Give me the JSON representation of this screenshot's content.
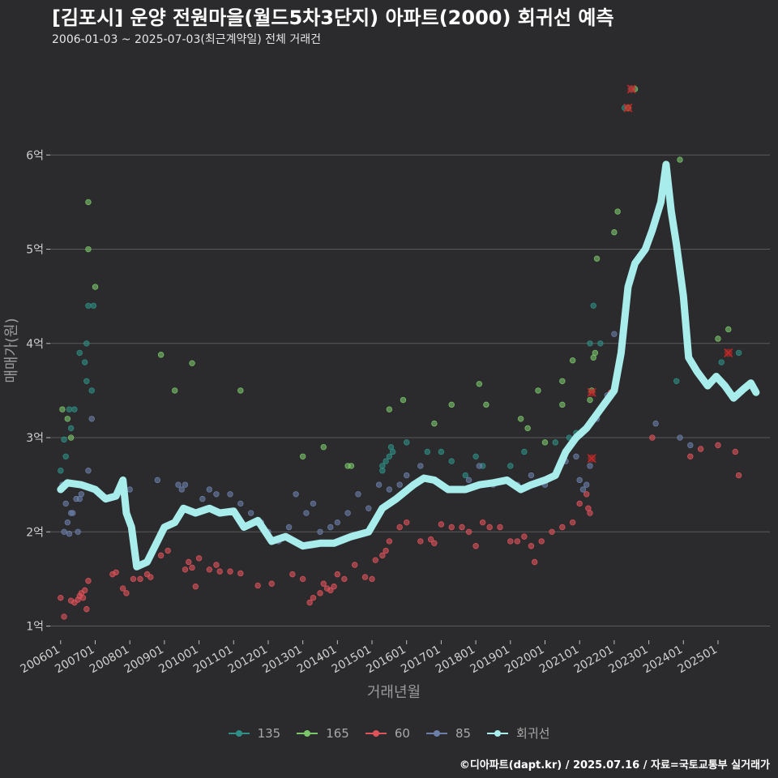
{
  "title": "[김포시] 운양 전원마을(월드5차3단지) 아파트(2000) 회귀선 예측",
  "subtitle": "2006-01-03 ~ 2025-07-03(최근계약일) 전체 거래건",
  "footer": "©디아파트(dapt.kr) / 2025.07.16 / 자료=국토교통부 실거래가",
  "colors": {
    "background": "#2b2b2d",
    "grid": "#5a5a5a",
    "s135": "#2f8f86",
    "s165": "#7cc66a",
    "s60": "#e0525a",
    "s85": "#6b7fa8",
    "regression": "#a8ecec",
    "outlier_marker": "#c62828"
  },
  "legend": [
    {
      "key": "s135",
      "label": "135"
    },
    {
      "key": "s165",
      "label": "165"
    },
    {
      "key": "s60",
      "label": "60"
    },
    {
      "key": "s85",
      "label": "85"
    },
    {
      "key": "regression",
      "label": "회귀선"
    }
  ],
  "chart_data": {
    "type": "scatter",
    "xlabel": "거래년월",
    "ylabel": "매매가(원)",
    "x_ticks": [
      "200601",
      "200701",
      "200801",
      "200901",
      "201001",
      "201101",
      "201201",
      "201301",
      "201401",
      "201501",
      "201601",
      "201701",
      "201801",
      "201901",
      "202001",
      "202101",
      "202201",
      "202301",
      "202401",
      "202501"
    ],
    "xlim": [
      2005.7,
      2026.5
    ],
    "ylim": [
      0.85,
      7.0
    ],
    "y_ticks": [
      {
        "value": 1,
        "label": "1억"
      },
      {
        "value": 2,
        "label": "2억"
      },
      {
        "value": 3,
        "label": "3억"
      },
      {
        "value": 4,
        "label": "4억"
      },
      {
        "value": 5,
        "label": "5억"
      },
      {
        "value": 6,
        "label": "6억"
      }
    ],
    "grid": true,
    "legend_position": "bottom",
    "series": [
      {
        "name": "135",
        "color_key": "s135",
        "points": [
          [
            2006.0,
            2.65
          ],
          [
            2006.1,
            2.98
          ],
          [
            2006.15,
            2.8
          ],
          [
            2006.3,
            3.1
          ],
          [
            2006.25,
            3.3
          ],
          [
            2006.4,
            3.3
          ],
          [
            2006.55,
            3.9
          ],
          [
            2006.7,
            3.8
          ],
          [
            2006.75,
            4.0
          ],
          [
            2006.8,
            4.4
          ],
          [
            2006.75,
            3.6
          ],
          [
            2006.9,
            3.5
          ],
          [
            2006.95,
            4.4
          ],
          [
            2015.3,
            2.7
          ],
          [
            2015.4,
            2.75
          ],
          [
            2015.5,
            2.8
          ],
          [
            2015.55,
            2.9
          ],
          [
            2015.6,
            2.85
          ],
          [
            2015.3,
            2.65
          ],
          [
            2016.0,
            2.95
          ],
          [
            2016.6,
            2.85
          ],
          [
            2017.0,
            2.85
          ],
          [
            2017.3,
            2.75
          ],
          [
            2017.7,
            2.6
          ],
          [
            2018.0,
            2.8
          ],
          [
            2018.2,
            2.7
          ],
          [
            2019.0,
            2.7
          ],
          [
            2019.4,
            2.85
          ],
          [
            2020.3,
            2.95
          ],
          [
            2020.7,
            3.0
          ],
          [
            2020.9,
            3.05
          ],
          [
            2021.3,
            4.0
          ],
          [
            2021.4,
            4.4
          ],
          [
            2021.6,
            4.0
          ],
          [
            2022.3,
            6.5
          ],
          [
            2022.5,
            6.7
          ],
          [
            2023.8,
            3.6
          ],
          [
            2025.1,
            3.8
          ],
          [
            2025.6,
            3.9
          ]
        ]
      },
      {
        "name": "165",
        "color_key": "s165",
        "points": [
          [
            2006.05,
            3.3
          ],
          [
            2006.2,
            3.2
          ],
          [
            2006.3,
            3.0
          ],
          [
            2006.8,
            5.5
          ],
          [
            2006.8,
            5.0
          ],
          [
            2007.0,
            4.6
          ],
          [
            2008.9,
            3.88
          ],
          [
            2009.3,
            3.5
          ],
          [
            2009.8,
            3.79
          ],
          [
            2011.2,
            3.5
          ],
          [
            2013.0,
            2.8
          ],
          [
            2013.6,
            2.9
          ],
          [
            2014.3,
            2.7
          ],
          [
            2014.4,
            2.7
          ],
          [
            2015.5,
            3.3
          ],
          [
            2015.9,
            3.4
          ],
          [
            2016.8,
            3.15
          ],
          [
            2017.3,
            3.35
          ],
          [
            2018.1,
            3.57
          ],
          [
            2018.3,
            3.35
          ],
          [
            2019.3,
            3.2
          ],
          [
            2019.5,
            3.1
          ],
          [
            2019.8,
            3.5
          ],
          [
            2020.0,
            2.95
          ],
          [
            2020.5,
            3.6
          ],
          [
            2020.5,
            3.35
          ],
          [
            2020.8,
            3.82
          ],
          [
            2021.3,
            3.4
          ],
          [
            2021.35,
            3.5
          ],
          [
            2021.4,
            3.85
          ],
          [
            2021.45,
            3.9
          ],
          [
            2021.5,
            4.9
          ],
          [
            2022.0,
            5.18
          ],
          [
            2022.1,
            5.4
          ],
          [
            2022.4,
            6.5
          ],
          [
            2022.6,
            6.7
          ],
          [
            2023.9,
            5.95
          ],
          [
            2025.0,
            4.05
          ],
          [
            2025.3,
            4.15
          ]
        ]
      },
      {
        "name": "60",
        "color_key": "s60",
        "points": [
          [
            2006.0,
            1.3
          ],
          [
            2006.1,
            1.1
          ],
          [
            2006.3,
            1.27
          ],
          [
            2006.4,
            1.25
          ],
          [
            2006.5,
            1.28
          ],
          [
            2006.55,
            1.32
          ],
          [
            2006.6,
            1.35
          ],
          [
            2006.65,
            1.3
          ],
          [
            2006.7,
            1.38
          ],
          [
            2006.75,
            1.18
          ],
          [
            2006.8,
            1.48
          ],
          [
            2007.5,
            1.55
          ],
          [
            2007.6,
            1.57
          ],
          [
            2007.8,
            1.4
          ],
          [
            2007.9,
            1.35
          ],
          [
            2008.1,
            1.5
          ],
          [
            2008.3,
            1.5
          ],
          [
            2008.5,
            1.55
          ],
          [
            2008.6,
            1.52
          ],
          [
            2008.9,
            1.75
          ],
          [
            2009.1,
            1.8
          ],
          [
            2009.6,
            1.6
          ],
          [
            2009.7,
            1.68
          ],
          [
            2009.8,
            1.62
          ],
          [
            2009.9,
            1.42
          ],
          [
            2010.0,
            1.72
          ],
          [
            2010.3,
            1.6
          ],
          [
            2010.5,
            1.65
          ],
          [
            2010.6,
            1.58
          ],
          [
            2010.9,
            1.58
          ],
          [
            2011.2,
            1.56
          ],
          [
            2011.7,
            1.43
          ],
          [
            2012.1,
            1.45
          ],
          [
            2012.7,
            1.55
          ],
          [
            2013.0,
            1.5
          ],
          [
            2013.2,
            1.25
          ],
          [
            2013.3,
            1.3
          ],
          [
            2013.5,
            1.35
          ],
          [
            2013.6,
            1.45
          ],
          [
            2013.7,
            1.4
          ],
          [
            2013.8,
            1.38
          ],
          [
            2013.9,
            1.42
          ],
          [
            2014.0,
            1.55
          ],
          [
            2014.2,
            1.5
          ],
          [
            2014.5,
            1.65
          ],
          [
            2014.8,
            1.52
          ],
          [
            2015.0,
            1.5
          ],
          [
            2015.1,
            1.7
          ],
          [
            2015.3,
            1.75
          ],
          [
            2015.4,
            1.8
          ],
          [
            2015.5,
            1.9
          ],
          [
            2015.8,
            2.05
          ],
          [
            2016.0,
            2.1
          ],
          [
            2016.4,
            1.9
          ],
          [
            2016.7,
            1.92
          ],
          [
            2016.8,
            1.88
          ],
          [
            2017.0,
            2.08
          ],
          [
            2017.3,
            2.05
          ],
          [
            2017.6,
            2.05
          ],
          [
            2017.8,
            2.0
          ],
          [
            2018.0,
            1.85
          ],
          [
            2018.2,
            2.1
          ],
          [
            2018.4,
            2.05
          ],
          [
            2018.7,
            2.05
          ],
          [
            2019.0,
            1.9
          ],
          [
            2019.2,
            1.9
          ],
          [
            2019.4,
            1.95
          ],
          [
            2019.6,
            1.85
          ],
          [
            2019.7,
            1.68
          ],
          [
            2019.9,
            1.9
          ],
          [
            2020.2,
            2.0
          ],
          [
            2020.5,
            2.05
          ],
          [
            2020.8,
            2.1
          ],
          [
            2021.0,
            2.3
          ],
          [
            2021.2,
            2.4
          ],
          [
            2021.25,
            2.25
          ],
          [
            2021.3,
            2.2
          ],
          [
            2021.9,
            3.48
          ],
          [
            2023.1,
            3.0
          ],
          [
            2024.2,
            2.8
          ],
          [
            2024.5,
            2.88
          ],
          [
            2025.0,
            2.92
          ],
          [
            2025.5,
            2.85
          ],
          [
            2025.6,
            2.6
          ]
        ]
      },
      {
        "name": "85",
        "color_key": "s85",
        "points": [
          [
            2006.05,
            2.5
          ],
          [
            2006.1,
            2.0
          ],
          [
            2006.15,
            2.3
          ],
          [
            2006.2,
            2.1
          ],
          [
            2006.25,
            1.98
          ],
          [
            2006.3,
            2.2
          ],
          [
            2006.35,
            2.2
          ],
          [
            2006.45,
            2.35
          ],
          [
            2006.5,
            2.0
          ],
          [
            2006.55,
            2.35
          ],
          [
            2006.6,
            2.4
          ],
          [
            2006.8,
            2.65
          ],
          [
            2006.9,
            3.2
          ],
          [
            2008.0,
            2.45
          ],
          [
            2008.8,
            2.55
          ],
          [
            2009.4,
            2.5
          ],
          [
            2009.5,
            2.45
          ],
          [
            2009.6,
            2.5
          ],
          [
            2010.1,
            2.35
          ],
          [
            2010.3,
            2.45
          ],
          [
            2010.5,
            2.4
          ],
          [
            2010.9,
            2.4
          ],
          [
            2011.2,
            2.3
          ],
          [
            2011.5,
            2.2
          ],
          [
            2011.8,
            2.1
          ],
          [
            2012.0,
            2.0
          ],
          [
            2012.3,
            1.9
          ],
          [
            2012.6,
            2.05
          ],
          [
            2012.8,
            2.4
          ],
          [
            2013.1,
            2.2
          ],
          [
            2013.3,
            2.3
          ],
          [
            2013.5,
            2.0
          ],
          [
            2013.8,
            2.05
          ],
          [
            2014.0,
            2.1
          ],
          [
            2014.3,
            2.2
          ],
          [
            2014.6,
            2.4
          ],
          [
            2014.9,
            2.25
          ],
          [
            2015.2,
            2.5
          ],
          [
            2015.5,
            2.45
          ],
          [
            2015.8,
            2.5
          ],
          [
            2016.0,
            2.6
          ],
          [
            2016.4,
            2.7
          ],
          [
            2016.7,
            2.55
          ],
          [
            2017.0,
            2.5
          ],
          [
            2017.4,
            2.45
          ],
          [
            2017.8,
            2.55
          ],
          [
            2018.1,
            2.7
          ],
          [
            2018.5,
            2.5
          ],
          [
            2018.9,
            2.55
          ],
          [
            2019.2,
            2.5
          ],
          [
            2019.6,
            2.6
          ],
          [
            2020.0,
            2.5
          ],
          [
            2020.3,
            2.6
          ],
          [
            2020.6,
            2.75
          ],
          [
            2020.9,
            2.8
          ],
          [
            2021.0,
            2.55
          ],
          [
            2021.1,
            2.45
          ],
          [
            2021.2,
            2.5
          ],
          [
            2021.3,
            2.7
          ],
          [
            2021.5,
            3.2
          ],
          [
            2021.8,
            3.45
          ],
          [
            2022.0,
            4.1
          ],
          [
            2023.2,
            3.15
          ],
          [
            2023.9,
            3.0
          ],
          [
            2024.2,
            2.92
          ]
        ]
      }
    ],
    "regression": [
      [
        2006.0,
        2.45
      ],
      [
        2006.2,
        2.52
      ],
      [
        2006.6,
        2.5
      ],
      [
        2007.0,
        2.45
      ],
      [
        2007.3,
        2.35
      ],
      [
        2007.6,
        2.38
      ],
      [
        2007.8,
        2.55
      ],
      [
        2007.9,
        2.2
      ],
      [
        2008.05,
        2.05
      ],
      [
        2008.2,
        1.63
      ],
      [
        2008.5,
        1.68
      ],
      [
        2008.8,
        1.9
      ],
      [
        2009.0,
        2.05
      ],
      [
        2009.3,
        2.1
      ],
      [
        2009.55,
        2.25
      ],
      [
        2009.9,
        2.2
      ],
      [
        2010.3,
        2.25
      ],
      [
        2010.6,
        2.2
      ],
      [
        2011.0,
        2.22
      ],
      [
        2011.3,
        2.05
      ],
      [
        2011.7,
        2.12
      ],
      [
        2012.1,
        1.9
      ],
      [
        2012.5,
        1.95
      ],
      [
        2013.0,
        1.85
      ],
      [
        2013.5,
        1.88
      ],
      [
        2013.9,
        1.88
      ],
      [
        2014.4,
        1.95
      ],
      [
        2014.9,
        2.0
      ],
      [
        2015.3,
        2.25
      ],
      [
        2015.7,
        2.35
      ],
      [
        2016.2,
        2.5
      ],
      [
        2016.5,
        2.57
      ],
      [
        2016.8,
        2.55
      ],
      [
        2017.2,
        2.45
      ],
      [
        2017.7,
        2.45
      ],
      [
        2018.1,
        2.5
      ],
      [
        2018.5,
        2.52
      ],
      [
        2018.9,
        2.55
      ],
      [
        2019.3,
        2.45
      ],
      [
        2019.6,
        2.5
      ],
      [
        2020.0,
        2.55
      ],
      [
        2020.3,
        2.6
      ],
      [
        2020.6,
        2.85
      ],
      [
        2020.9,
        3.0
      ],
      [
        2021.2,
        3.1
      ],
      [
        2021.4,
        3.2
      ],
      [
        2021.7,
        3.35
      ],
      [
        2022.0,
        3.5
      ],
      [
        2022.2,
        3.9
      ],
      [
        2022.4,
        4.6
      ],
      [
        2022.6,
        4.85
      ],
      [
        2022.9,
        5.0
      ],
      [
        2023.1,
        5.2
      ],
      [
        2023.35,
        5.5
      ],
      [
        2023.5,
        5.9
      ],
      [
        2023.65,
        5.4
      ],
      [
        2023.8,
        5.05
      ],
      [
        2024.0,
        4.5
      ],
      [
        2024.15,
        3.85
      ],
      [
        2024.4,
        3.7
      ],
      [
        2024.7,
        3.55
      ],
      [
        2024.95,
        3.65
      ],
      [
        2025.2,
        3.55
      ],
      [
        2025.45,
        3.42
      ],
      [
        2025.75,
        3.52
      ],
      [
        2025.95,
        3.58
      ],
      [
        2026.1,
        3.48
      ]
    ],
    "outlier_markers": [
      [
        2021.35,
        2.78
      ],
      [
        2021.35,
        3.48
      ],
      [
        2022.4,
        6.5
      ],
      [
        2022.5,
        6.7
      ],
      [
        2025.3,
        3.9
      ]
    ]
  }
}
